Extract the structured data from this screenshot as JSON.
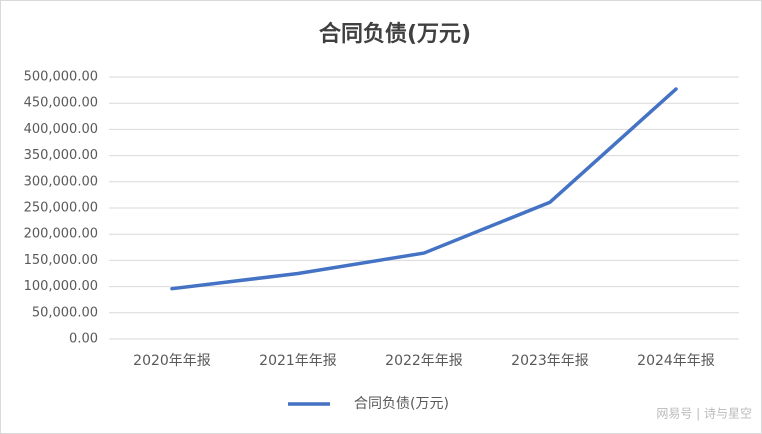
{
  "chart_data": {
    "type": "line",
    "title": "合同负债(万元)",
    "categories": [
      "2020年年报",
      "2021年年报",
      "2022年年报",
      "2023年年报",
      "2024年年报"
    ],
    "series": [
      {
        "name": "合同负债(万元)",
        "color": "#4472c4",
        "values": [
          96000,
          125000,
          164000,
          261000,
          477000
        ]
      }
    ],
    "ylim": [
      0,
      500000
    ],
    "yticks": [
      {
        "value": 0,
        "label": "0.00"
      },
      {
        "value": 50000,
        "label": "50,000.00"
      },
      {
        "value": 100000,
        "label": "100,000.00"
      },
      {
        "value": 150000,
        "label": "150,000.00"
      },
      {
        "value": 200000,
        "label": "200,000.00"
      },
      {
        "value": 250000,
        "label": "250,000.00"
      },
      {
        "value": 300000,
        "label": "300,000.00"
      },
      {
        "value": 350000,
        "label": "350,000.00"
      },
      {
        "value": 400000,
        "label": "400,000.00"
      },
      {
        "value": 450000,
        "label": "450,000.00"
      },
      {
        "value": 500000,
        "label": "500,000.00"
      }
    ],
    "grid": true,
    "legend": "bottom",
    "watermark": "网易号 | 诗与星空"
  }
}
